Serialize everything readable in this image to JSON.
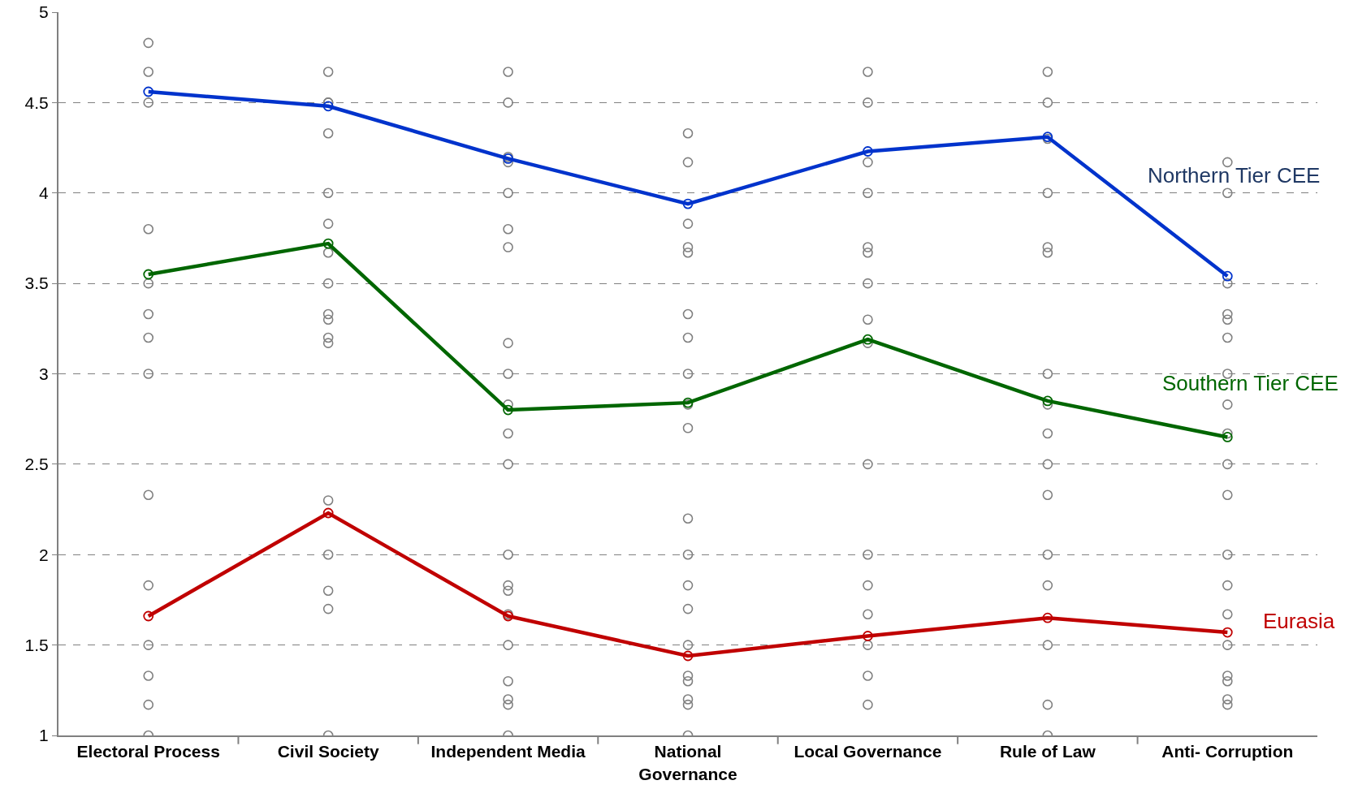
{
  "chart_data": {
    "type": "line",
    "categories": [
      "Electoral Process",
      "Civil Society",
      "Independent Media",
      "National Governance",
      "Local Governance",
      "Rule of Law",
      "Anti- Corruption"
    ],
    "series": [
      {
        "type": "scatter",
        "color": "#808080",
        "x": [
          "Electoral Process",
          "Electoral Process",
          "Electoral Process",
          "Electoral Process",
          "Electoral Process",
          "Electoral Process",
          "Electoral Process",
          "Electoral Process",
          "Electoral Process",
          "Electoral Process",
          "Electoral Process",
          "Electoral Process",
          "Electoral Process",
          "Electoral Process",
          "Electoral Process",
          "Civil Society",
          "Civil Society",
          "Civil Society",
          "Civil Society",
          "Civil Society",
          "Civil Society",
          "Civil Society",
          "Civil Society",
          "Civil Society",
          "Civil Society",
          "Civil Society",
          "Civil Society",
          "Civil Society",
          "Civil Society",
          "Civil Society",
          "Civil Society",
          "Civil Society",
          "Independent Media",
          "Independent Media",
          "Independent Media",
          "Independent Media",
          "Independent Media",
          "Independent Media",
          "Independent Media",
          "Independent Media",
          "Independent Media",
          "Independent Media",
          "Independent Media",
          "Independent Media",
          "Independent Media",
          "Independent Media",
          "Independent Media",
          "Independent Media",
          "Independent Media",
          "Independent Media",
          "Independent Media",
          "Independent Media",
          "Independent Media",
          "National Governance",
          "National Governance",
          "National Governance",
          "National Governance",
          "National Governance",
          "National Governance",
          "National Governance",
          "National Governance",
          "National Governance",
          "National Governance",
          "National Governance",
          "National Governance",
          "National Governance",
          "National Governance",
          "National Governance",
          "National Governance",
          "National Governance",
          "National Governance",
          "National Governance",
          "National Governance",
          "Local Governance",
          "Local Governance",
          "Local Governance",
          "Local Governance",
          "Local Governance",
          "Local Governance",
          "Local Governance",
          "Local Governance",
          "Local Governance",
          "Local Governance",
          "Local Governance",
          "Local Governance",
          "Local Governance",
          "Local Governance",
          "Local Governance",
          "Local Governance",
          "Rule of Law",
          "Rule of Law",
          "Rule of Law",
          "Rule of Law",
          "Rule of Law",
          "Rule of Law",
          "Rule of Law",
          "Rule of Law",
          "Rule of Law",
          "Rule of Law",
          "Rule of Law",
          "Rule of Law",
          "Rule of Law",
          "Rule of Law",
          "Rule of Law",
          "Rule of Law",
          "Anti- Corruption",
          "Anti- Corruption",
          "Anti- Corruption",
          "Anti- Corruption",
          "Anti- Corruption",
          "Anti- Corruption",
          "Anti- Corruption",
          "Anti- Corruption",
          "Anti- Corruption",
          "Anti- Corruption",
          "Anti- Corruption",
          "Anti- Corruption",
          "Anti- Corruption",
          "Anti- Corruption",
          "Anti- Corruption",
          "Anti- Corruption",
          "Anti- Corruption",
          "Anti- Corruption",
          "Anti- Corruption"
        ],
        "values": [
          4.83,
          4.67,
          4.5,
          3.8,
          3.5,
          3.33,
          3.2,
          3.0,
          2.33,
          1.83,
          null,
          1.5,
          1.33,
          1.17,
          1.0,
          4.67,
          4.5,
          4.33,
          4.0,
          3.83,
          3.67,
          3.5,
          3.33,
          3.3,
          3.2,
          3.17,
          2.3,
          2.0,
          1.8,
          1.7,
          1.0,
          4.5,
          4.67,
          4.5,
          4.2,
          4.17,
          4.0,
          3.8,
          3.7,
          3.17,
          3.0,
          2.83,
          2.67,
          2.5,
          2.0,
          1.83,
          1.8,
          1.67,
          1.5,
          1.3,
          1.2,
          1.17,
          1.0,
          4.33,
          4.17,
          3.83,
          3.7,
          3.67,
          3.33,
          3.2,
          3.0,
          2.83,
          2.7,
          2.2,
          2.0,
          1.83,
          1.7,
          1.5,
          1.33,
          1.3,
          1.2,
          1.17,
          1.0,
          4.67,
          4.5,
          4.17,
          4.0,
          3.7,
          3.67,
          3.5,
          3.3,
          3.17,
          2.5,
          2.0,
          1.83,
          1.67,
          1.5,
          1.33,
          1.17,
          4.67,
          4.5,
          4.3,
          4.0,
          3.7,
          3.67,
          3.0,
          2.83,
          2.67,
          2.5,
          2.33,
          2.0,
          1.83,
          1.5,
          1.17,
          1.0,
          4.17,
          4.0,
          3.5,
          3.33,
          3.3,
          3.2,
          3.0,
          2.83,
          2.67,
          2.5,
          2.33,
          2.0,
          1.83,
          1.67,
          1.5,
          1.33,
          1.3,
          1.2,
          1.17
        ]
      },
      {
        "name": "Northern Tier CEE",
        "color": "#0033cc",
        "values": [
          4.56,
          4.48,
          4.19,
          3.94,
          4.23,
          4.31,
          3.54
        ]
      },
      {
        "name": "Southern Tier CEE",
        "color": "#006600",
        "values": [
          3.55,
          3.72,
          2.8,
          2.84,
          3.19,
          2.85,
          2.65
        ]
      },
      {
        "name": "Eurasia",
        "color": "#c00000",
        "values": [
          1.66,
          2.23,
          1.66,
          1.44,
          1.55,
          1.65,
          1.57
        ]
      }
    ],
    "ylim": [
      1,
      5
    ],
    "yticks": [
      1,
      1.5,
      2,
      2.5,
      3,
      3.5,
      4,
      4.5,
      5
    ],
    "grid": "y",
    "legend": false,
    "marker": "circle",
    "line_style": "solid"
  }
}
